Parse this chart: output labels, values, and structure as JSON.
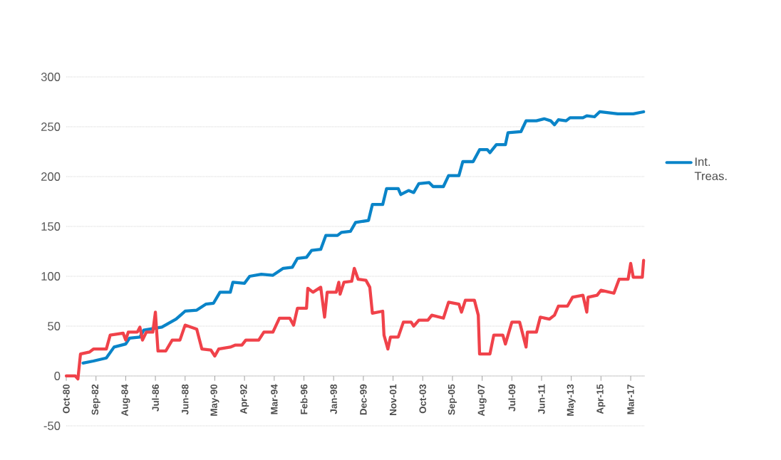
{
  "chart_data": {
    "type": "line",
    "marker": "none",
    "grid": "y",
    "legend": "right",
    "xlim": [
      "1980-10",
      "2018-02"
    ],
    "ylim": [
      -50,
      300
    ],
    "yticks": [
      -50,
      0,
      50,
      100,
      150,
      200,
      250,
      300
    ],
    "xticks": [
      {
        "value": "1980-10",
        "label": "Oct-80"
      },
      {
        "value": "1982-09",
        "label": "Sep-82"
      },
      {
        "value": "1984-08",
        "label": "Aug-84"
      },
      {
        "value": "1986-07",
        "label": "Jul-86"
      },
      {
        "value": "1988-06",
        "label": "Jun-88"
      },
      {
        "value": "1990-05",
        "label": "May-90"
      },
      {
        "value": "1992-04",
        "label": "Apr-92"
      },
      {
        "value": "1994-03",
        "label": "Mar-94"
      },
      {
        "value": "1996-02",
        "label": "Feb-96"
      },
      {
        "value": "1998-01",
        "label": "Jan-98"
      },
      {
        "value": "1999-12",
        "label": "Dec-99"
      },
      {
        "value": "2001-11",
        "label": "Nov-01"
      },
      {
        "value": "2003-10",
        "label": "Oct-03"
      },
      {
        "value": "2005-09",
        "label": "Sep-05"
      },
      {
        "value": "2007-08",
        "label": "Aug-07"
      },
      {
        "value": "2009-07",
        "label": "Jul-09"
      },
      {
        "value": "2011-06",
        "label": "Jun-11"
      },
      {
        "value": "2013-05",
        "label": "May-13"
      },
      {
        "value": "2015-04",
        "label": "Apr-15"
      },
      {
        "value": "2017-03",
        "label": "Mar-17"
      }
    ],
    "series": [
      {
        "name": "Int. Treas.",
        "color": "#0a84c8",
        "x": [
          "1981-11",
          "1982-07",
          "1983-05",
          "1983-11",
          "1984-08",
          "1984-11",
          "1985-07",
          "1985-10",
          "1986-12",
          "1987-11",
          "1988-06",
          "1989-03",
          "1989-10",
          "1990-04",
          "1990-09",
          "1991-05",
          "1991-07",
          "1992-04",
          "1992-08",
          "1993-05",
          "1994-02",
          "1994-10",
          "1995-05",
          "1995-09",
          "1996-04",
          "1996-08",
          "1997-03",
          "1997-07",
          "1998-04",
          "1998-07",
          "1999-02",
          "1999-06",
          "2000-04",
          "2000-07",
          "2001-03",
          "2001-06",
          "2002-03",
          "2002-05",
          "2002-11",
          "2003-03",
          "2003-07",
          "2004-03",
          "2004-06",
          "2005-02",
          "2005-06",
          "2006-02",
          "2006-05",
          "2007-01",
          "2007-06",
          "2007-12",
          "2008-02",
          "2008-07",
          "2009-02",
          "2009-04",
          "2010-02",
          "2010-06",
          "2011-02",
          "2011-08",
          "2012-01",
          "2012-04",
          "2012-07",
          "2013-01",
          "2013-04",
          "2014-02",
          "2014-05",
          "2014-11",
          "2015-03",
          "2015-10",
          "2016-05",
          "2017-05",
          "2018-01"
        ],
        "values": [
          13,
          15,
          18,
          29,
          32,
          38,
          39,
          46,
          49,
          57,
          65,
          66,
          72,
          73,
          84,
          84,
          94,
          93,
          100,
          102,
          101,
          108,
          109,
          118,
          119,
          126,
          127,
          141,
          141,
          144,
          145,
          154,
          156,
          172,
          172,
          188,
          188,
          182,
          186,
          184,
          193,
          194,
          190,
          190,
          201,
          201,
          215,
          215,
          227,
          227,
          224,
          232,
          232,
          244,
          245,
          256,
          256,
          258,
          256,
          252,
          257,
          256,
          259,
          259,
          261,
          260,
          265,
          264,
          263,
          263,
          265
        ]
      },
      {
        "color": "#f0424a",
        "x": [
          "1980-10",
          "1981-05",
          "1981-07",
          "1981-09",
          "1982-04",
          "1982-07",
          "1983-05",
          "1983-08",
          "1984-06",
          "1984-08",
          "1984-10",
          "1985-05",
          "1985-07",
          "1985-09",
          "1985-12",
          "1986-05",
          "1986-07",
          "1986-09",
          "1987-03",
          "1987-08",
          "1988-02",
          "1988-06",
          "1989-03",
          "1989-07",
          "1990-02",
          "1990-05",
          "1990-08",
          "1991-05",
          "1991-09",
          "1992-02",
          "1992-05",
          "1993-03",
          "1993-07",
          "1994-02",
          "1994-07",
          "1995-03",
          "1995-06",
          "1995-09",
          "1996-04",
          "1996-05",
          "1996-09",
          "1997-03",
          "1997-06",
          "1997-08",
          "1998-03",
          "1998-05",
          "1998-06",
          "1998-09",
          "1999-03",
          "1999-05",
          "1999-08",
          "2000-02",
          "2000-05",
          "2000-07",
          "2001-03",
          "2001-04",
          "2001-07",
          "2001-09",
          "2002-03",
          "2002-07",
          "2003-01",
          "2003-03",
          "2003-07",
          "2004-02",
          "2004-05",
          "2005-02",
          "2005-06",
          "2006-02",
          "2006-04",
          "2006-07",
          "2007-02",
          "2007-05",
          "2007-06",
          "2008-02",
          "2008-05",
          "2008-12",
          "2009-02",
          "2009-07",
          "2010-01",
          "2010-06",
          "2010-07",
          "2011-02",
          "2011-05",
          "2011-12",
          "2012-04",
          "2012-07",
          "2013-02",
          "2013-06",
          "2014-02",
          "2014-05",
          "2014-06",
          "2015-01",
          "2015-04",
          "2016-02",
          "2016-06",
          "2017-01",
          "2017-03",
          "2017-05",
          "2017-12",
          "2018-01"
        ],
        "values": [
          0,
          0,
          -3,
          22,
          24,
          27,
          27,
          41,
          43,
          36,
          44,
          44,
          49,
          36,
          44,
          44,
          64,
          25,
          25,
          36,
          36,
          51,
          47,
          27,
          26,
          20,
          27,
          29,
          31,
          31,
          36,
          36,
          44,
          44,
          58,
          58,
          51,
          68,
          68,
          88,
          84,
          89,
          59,
          84,
          84,
          94,
          82,
          94,
          95,
          108,
          97,
          96,
          89,
          63,
          65,
          41,
          27,
          39,
          39,
          54,
          54,
          50,
          56,
          56,
          61,
          58,
          74,
          72,
          64,
          76,
          76,
          61,
          22,
          22,
          41,
          41,
          32,
          54,
          54,
          29,
          44,
          44,
          59,
          57,
          61,
          70,
          70,
          79,
          81,
          64,
          79,
          81,
          86,
          83,
          97,
          97,
          113,
          99,
          99,
          116
        ]
      }
    ]
  }
}
